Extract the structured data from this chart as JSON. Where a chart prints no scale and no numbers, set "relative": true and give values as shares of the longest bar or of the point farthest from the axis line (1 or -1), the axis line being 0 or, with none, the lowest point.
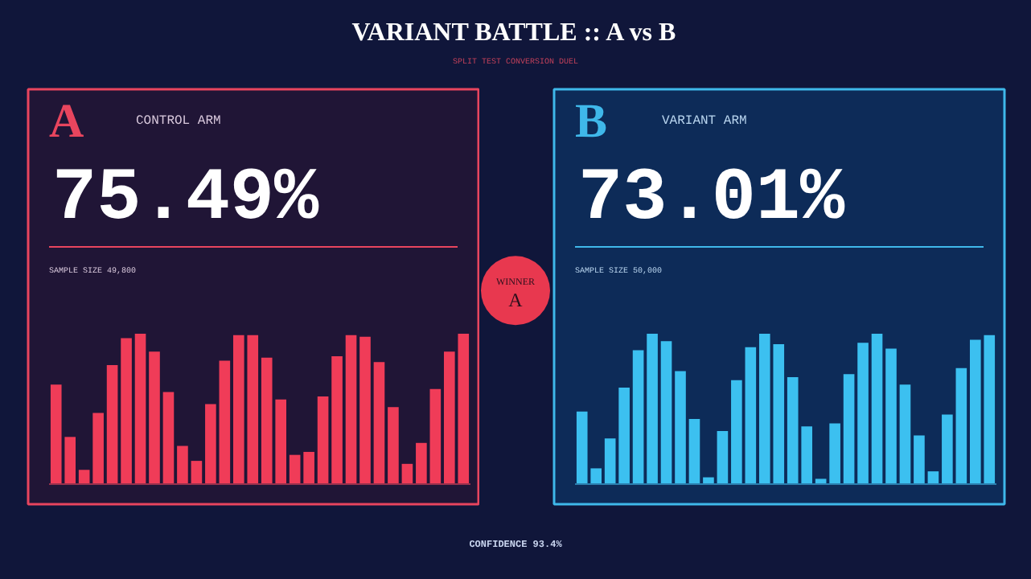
{
  "chart_data": [
    {
      "type": "bar",
      "title": "A",
      "subtitle": "CONTROL ARM",
      "annotations": [
        "75.49%",
        "SAMPLE SIZE 49,800"
      ],
      "relative": true,
      "color": "#f03c58",
      "categories": [
        null,
        null,
        null,
        null,
        null,
        null,
        null,
        null,
        null,
        null,
        null,
        null,
        null,
        null,
        null,
        null,
        null,
        null,
        null,
        null,
        null,
        null,
        null,
        null,
        null,
        null,
        null,
        null,
        null,
        null
      ],
      "values": [
        0.66,
        0.31,
        0.09,
        0.47,
        0.79,
        0.97,
        1.0,
        0.88,
        0.61,
        0.25,
        0.15,
        0.53,
        0.82,
        0.99,
        0.99,
        0.84,
        0.56,
        0.19,
        0.21,
        0.58,
        0.85,
        0.99,
        0.98,
        0.81,
        0.51,
        0.13,
        0.27,
        0.63,
        0.88,
        1.0
      ]
    },
    {
      "type": "bar",
      "title": "B",
      "subtitle": "VARIANT ARM",
      "annotations": [
        "73.01%",
        "SAMPLE SIZE 50,000"
      ],
      "relative": true,
      "color": "#3cc0f0",
      "categories": [
        null,
        null,
        null,
        null,
        null,
        null,
        null,
        null,
        null,
        null,
        null,
        null,
        null,
        null,
        null,
        null,
        null,
        null,
        null,
        null,
        null,
        null,
        null,
        null,
        null,
        null,
        null,
        null,
        null,
        null
      ],
      "values": [
        0.48,
        0.1,
        0.3,
        0.64,
        0.89,
        1.0,
        0.95,
        0.75,
        0.43,
        0.04,
        0.35,
        0.69,
        0.91,
        1.0,
        0.93,
        0.71,
        0.38,
        0.03,
        0.4,
        0.73,
        0.94,
        1.0,
        0.9,
        0.66,
        0.32,
        0.08,
        0.46,
        0.77,
        0.96,
        0.99
      ]
    },
    {
      "type": "other",
      "title": "VARIANT BATTLE :: A vs B",
      "subtitle": "SPLIT TEST CONVERSION DUEL",
      "annotations": [
        "WINNER",
        "A",
        "CONFIDENCE 93.4%"
      ]
    }
  ]
}
